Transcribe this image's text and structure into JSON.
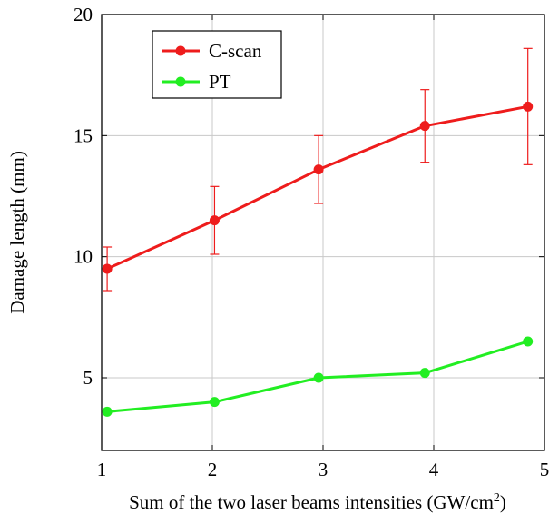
{
  "chart_data": {
    "type": "line",
    "xlabel": "Sum of the two laser beams intensities (GW/cm",
    "xlabel_superscript": "2",
    "xlabel_suffix": ")",
    "ylabel": "Damage length (mm)",
    "xlim": [
      1,
      5
    ],
    "ylim": [
      2,
      20
    ],
    "xticks": [
      "1",
      "2",
      "3",
      "4",
      "5"
    ],
    "yticks": [
      "5",
      "10",
      "15",
      "20"
    ],
    "grid": true,
    "legend_position": "top-left",
    "series": [
      {
        "name": "C-scan",
        "color": "#ee1c1c",
        "x": [
          1.05,
          2.02,
          2.96,
          3.92,
          4.85
        ],
        "y": [
          9.5,
          11.5,
          13.6,
          15.4,
          16.2
        ],
        "err_low": [
          8.6,
          10.1,
          12.2,
          13.9,
          13.8
        ],
        "err_high": [
          10.4,
          12.9,
          15.0,
          16.9,
          18.6
        ]
      },
      {
        "name": "PT",
        "color": "#22ee22",
        "x": [
          1.05,
          2.02,
          2.96,
          3.92,
          4.85
        ],
        "y": [
          3.6,
          4.0,
          5.0,
          5.2,
          6.5
        ]
      }
    ]
  }
}
